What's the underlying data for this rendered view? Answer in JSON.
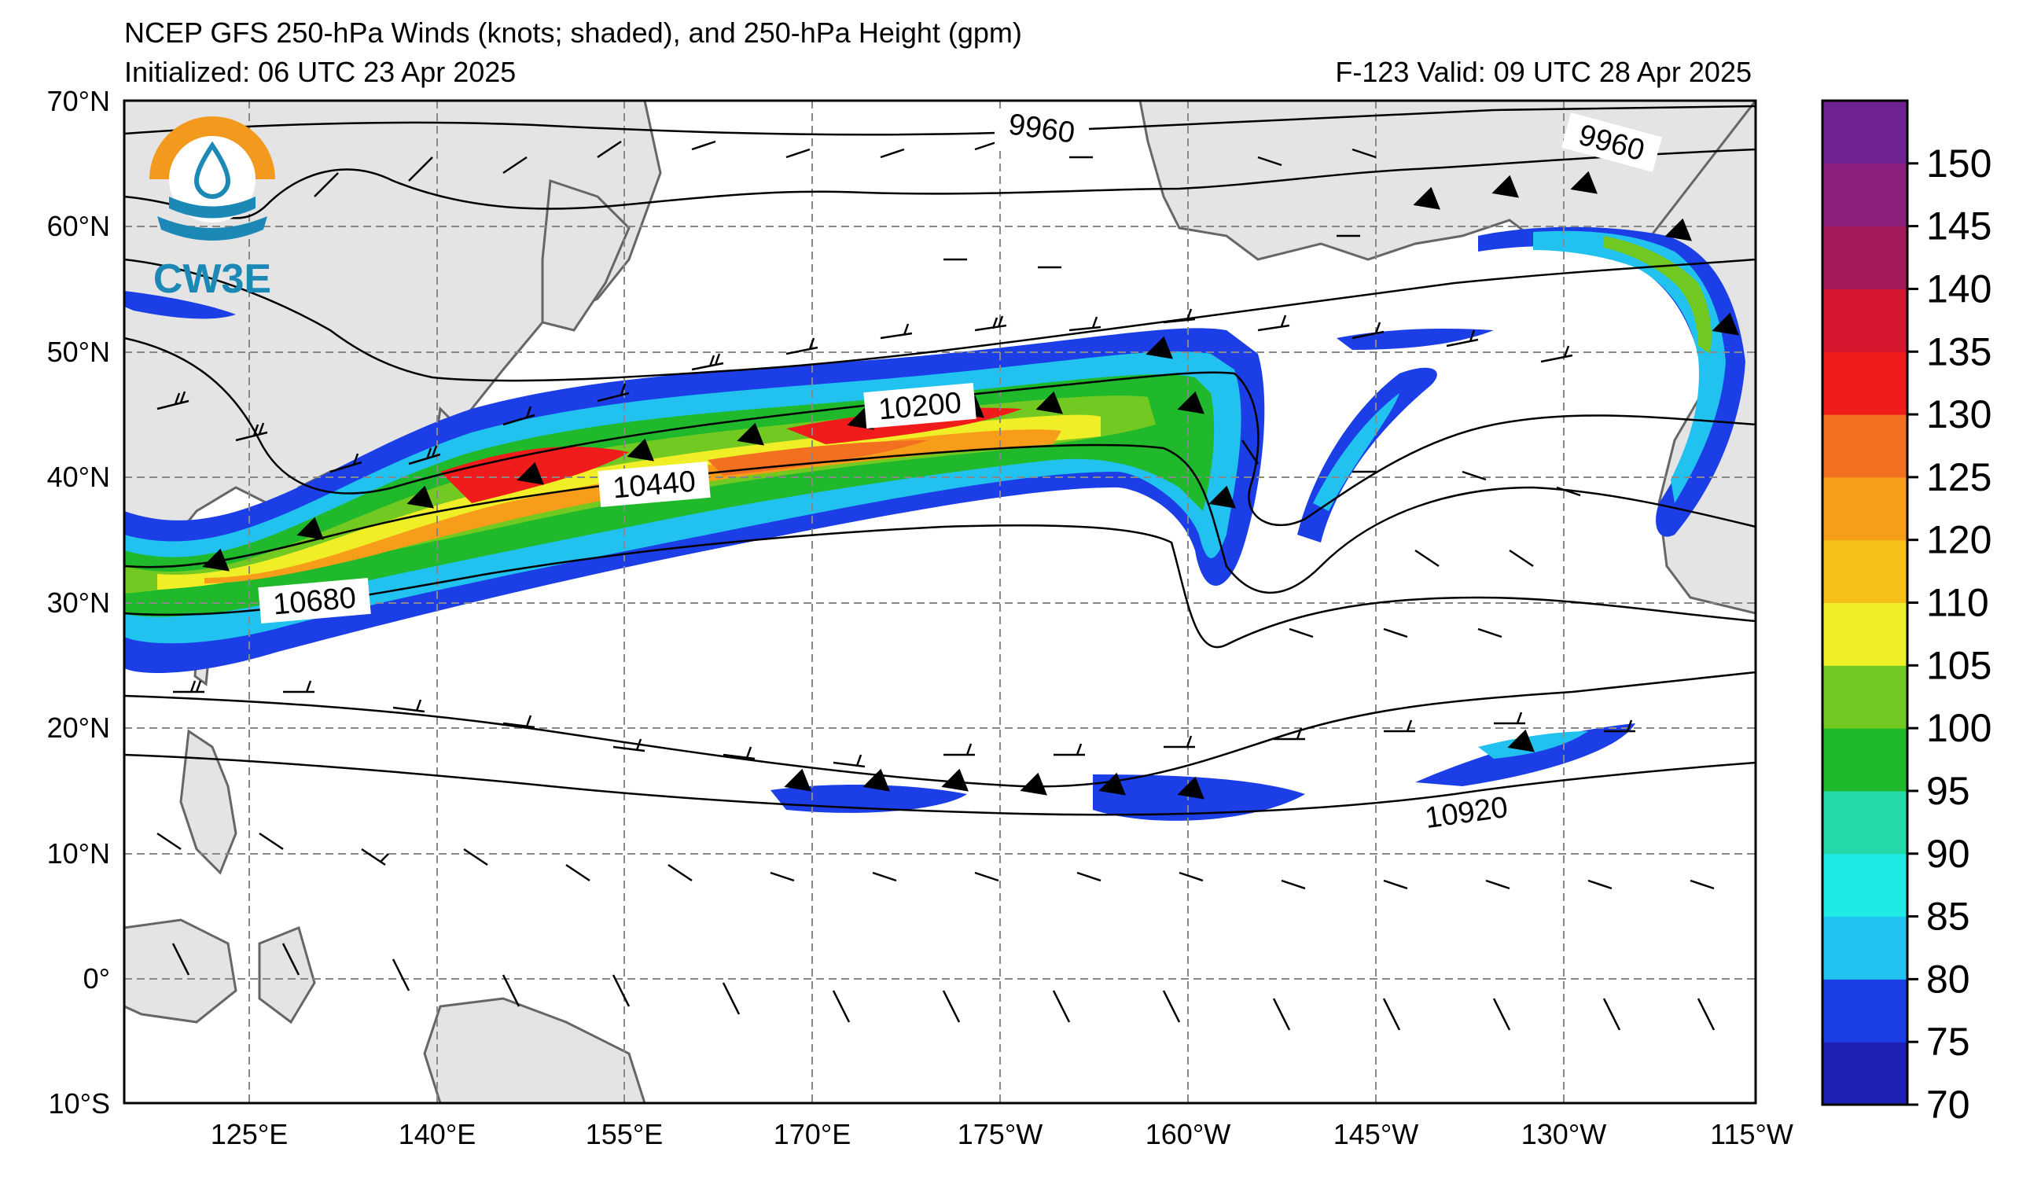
{
  "header": {
    "title": "NCEP GFS 250-hPa Winds (knots; shaded), and 250-hPa Height (gpm)",
    "initialized": "Initialized: 06 UTC 23 Apr 2025",
    "valid": "F-123  Valid: 09 UTC 28 Apr 2025"
  },
  "logo": {
    "text": "CW3E",
    "colors": {
      "ring": "#f39a1e",
      "wave": "#1b88b5"
    }
  },
  "map": {
    "lat_labels": [
      "70°N",
      "60°N",
      "50°N",
      "40°N",
      "30°N",
      "20°N",
      "10°N",
      "0°",
      "10°S"
    ],
    "lon_labels": [
      "125°E",
      "140°E",
      "155°E",
      "170°E",
      "175°W",
      "160°W",
      "145°W",
      "130°W",
      "115°W"
    ],
    "contour_labels": [
      "9960",
      "9960",
      "10200",
      "10440",
      "10680",
      "10920"
    ],
    "land_color": "#e4e4e4",
    "coast_color": "#666666"
  },
  "colorbar": {
    "ticks": [
      "70",
      "75",
      "80",
      "85",
      "90",
      "95",
      "100",
      "105",
      "110",
      "120",
      "125",
      "130",
      "135",
      "140",
      "145",
      "150"
    ],
    "colors": [
      "#1d1fb5",
      "#1c3ee6",
      "#21c2f0",
      "#1fe9e4",
      "#23d8a9",
      "#1fb92b",
      "#72c921",
      "#f0ef27",
      "#f6c018",
      "#f79d19",
      "#f37021",
      "#f01b1b",
      "#d5162f",
      "#a31b59",
      "#8c1f7c",
      "#6f2390"
    ]
  }
}
